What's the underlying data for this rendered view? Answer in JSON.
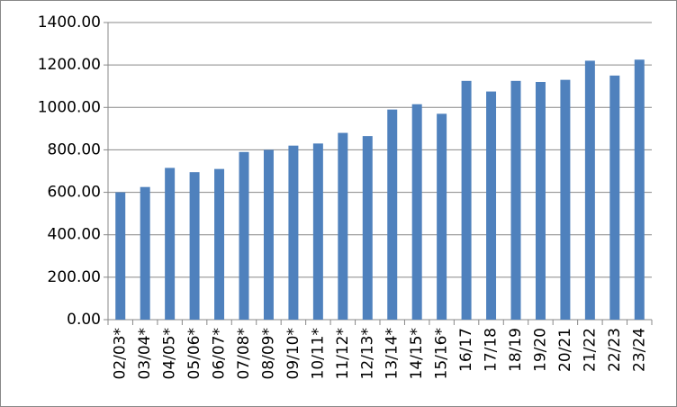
{
  "chart_data": {
    "type": "bar",
    "categories": [
      "02/03*",
      "03/04*",
      "04/05*",
      "05/06*",
      "06/07*",
      "07/08*",
      "08/09*",
      "09/10*",
      "10/11*",
      "11/12*",
      "12/13*",
      "13/14*",
      "14/15*",
      "15/16*",
      "16/17",
      "17/18",
      "18/19",
      "19/20",
      "20/21",
      "21/22",
      "22/23",
      "23/24"
    ],
    "values": [
      600,
      625,
      715,
      695,
      710,
      790,
      800,
      820,
      830,
      880,
      865,
      990,
      1015,
      970,
      1125,
      1075,
      1125,
      1120,
      1130,
      1220,
      1150,
      1225
    ],
    "color": "#4f81bd",
    "ylim": [
      0,
      1400
    ],
    "yticks": [
      {
        "value": 0,
        "label": "0.00"
      },
      {
        "value": 200,
        "label": "200.00"
      },
      {
        "value": 400,
        "label": "400.00"
      },
      {
        "value": 600,
        "label": "600.00"
      },
      {
        "value": 800,
        "label": "800.00"
      },
      {
        "value": 1000,
        "label": "1000.00"
      },
      {
        "value": 1200,
        "label": "1200.00"
      },
      {
        "value": 1400,
        "label": "1400.00"
      }
    ],
    "grid": true
  }
}
